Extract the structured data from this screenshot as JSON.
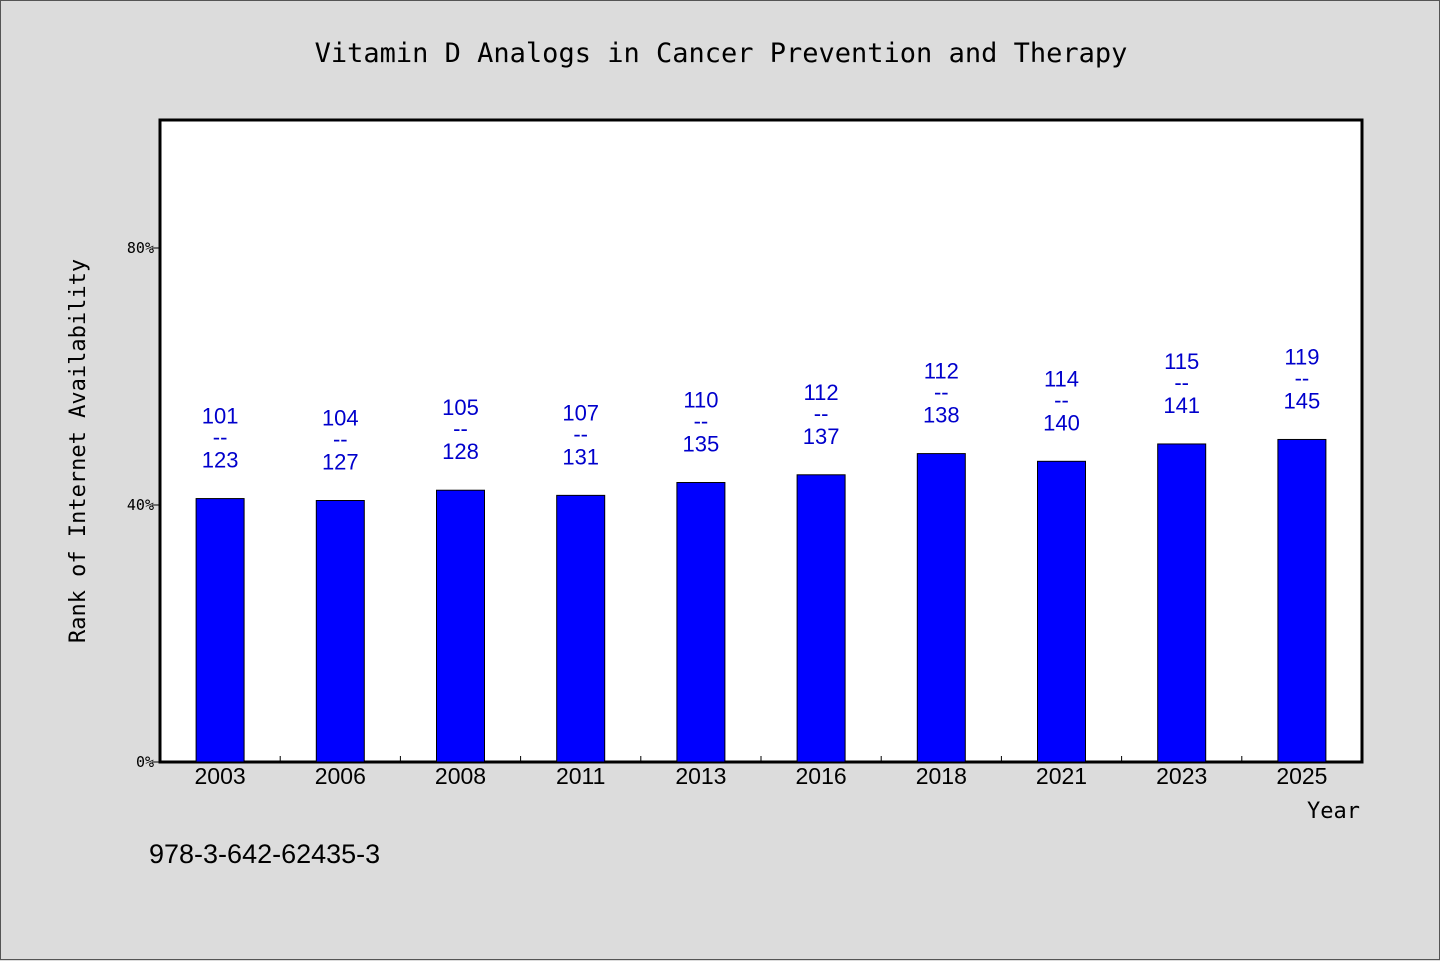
{
  "chart_data": {
    "type": "bar",
    "title": "Vitamin D Analogs in Cancer Prevention and Therapy",
    "xlabel": "Year",
    "ylabel": "Rank of Internet Availability",
    "categories": [
      "2003",
      "2006",
      "2008",
      "2011",
      "2013",
      "2016",
      "2018",
      "2021",
      "2023",
      "2025"
    ],
    "values": [
      41.0,
      40.7,
      42.3,
      41.5,
      43.5,
      44.7,
      48.0,
      46.8,
      49.5,
      50.2
    ],
    "bar_labels": [
      {
        "top": "101",
        "mid": "--",
        "bottom": "123"
      },
      {
        "top": "104",
        "mid": "--",
        "bottom": "127"
      },
      {
        "top": "105",
        "mid": "--",
        "bottom": "128"
      },
      {
        "top": "107",
        "mid": "--",
        "bottom": "131"
      },
      {
        "top": "110",
        "mid": "--",
        "bottom": "135"
      },
      {
        "top": "112",
        "mid": "--",
        "bottom": "137"
      },
      {
        "top": "112",
        "mid": "--",
        "bottom": "138"
      },
      {
        "top": "114",
        "mid": "--",
        "bottom": "140"
      },
      {
        "top": "115",
        "mid": "--",
        "bottom": "141"
      },
      {
        "top": "119",
        "mid": "--",
        "bottom": "145"
      }
    ],
    "yticks": [
      {
        "value": 0,
        "label": "0%"
      },
      {
        "value": 40,
        "label": "40%"
      },
      {
        "value": 80,
        "label": "80%"
      }
    ],
    "ylim": [
      0,
      100
    ],
    "grid": false,
    "bar_color": "#0000ff",
    "label_color": "#0000cc",
    "footnote": "978-3-642-62435-3"
  }
}
